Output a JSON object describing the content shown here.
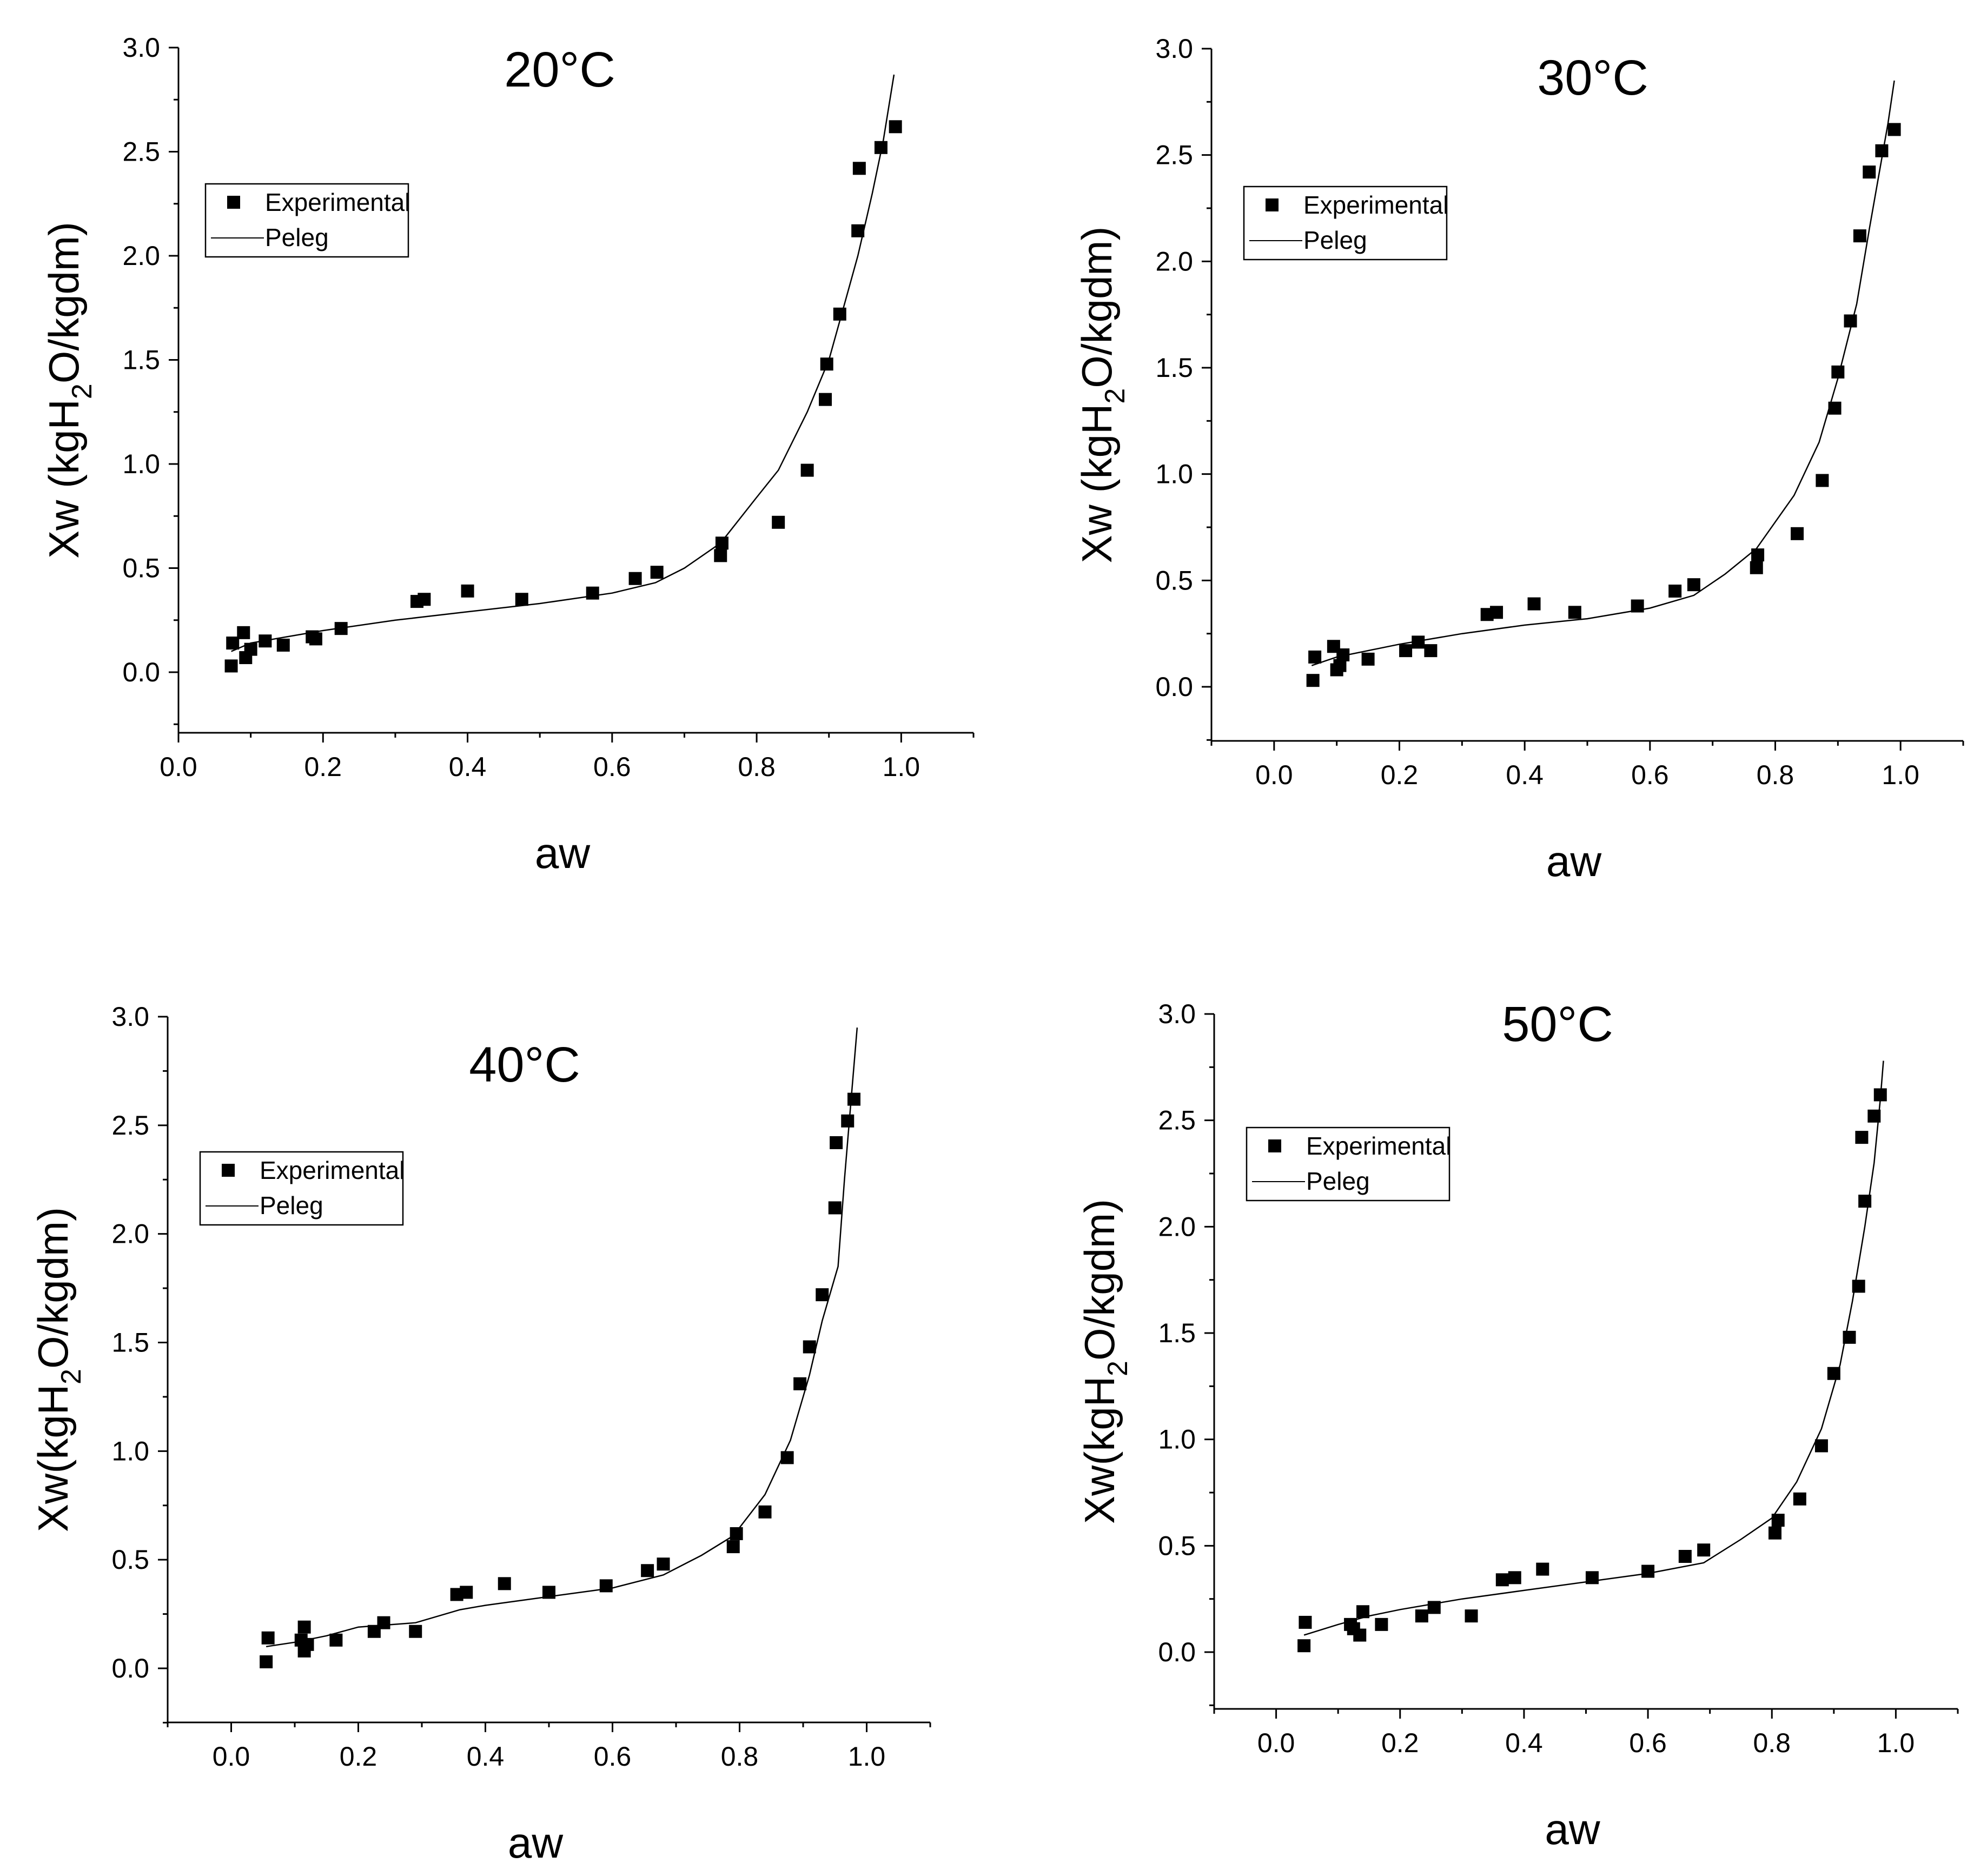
{
  "chart_data": [
    {
      "type": "scatter",
      "title": "20°C",
      "xlabel": "aw",
      "ylabel_prefix": "Xw  (kgH",
      "ylabel_sub": "2",
      "ylabel_suffix": "O/kgdm)",
      "xlim": [
        -0.0,
        1.1
      ],
      "ylim": [
        -0.25,
        3.0
      ],
      "xticks": [
        0.0,
        0.2,
        0.4,
        0.6,
        0.8,
        1.0
      ],
      "xtick_labels": [
        "0.0",
        "0.2",
        "0.4",
        "0.6",
        "0.8",
        "1.0"
      ],
      "yticks": [
        0.0,
        0.5,
        1.0,
        1.5,
        2.0,
        2.5,
        3.0
      ],
      "ytick_labels": [
        "0.0",
        "0.5",
        "1.0",
        "1.5",
        "2.0",
        "2.5",
        "3.0"
      ],
      "legend": {
        "position": "upper-left",
        "entries": [
          "Experimental",
          "Peleg"
        ]
      },
      "series": [
        {
          "name": "Experimental",
          "kind": "markers",
          "x": [
            0.073,
            0.075,
            0.09,
            0.093,
            0.1,
            0.12,
            0.145,
            0.185,
            0.19,
            0.225,
            0.33,
            0.34,
            0.4,
            0.475,
            0.573,
            0.632,
            0.662,
            0.75,
            0.752,
            0.83,
            0.87,
            0.895,
            0.897,
            0.915,
            0.94,
            0.942,
            0.972,
            0.992
          ],
          "y": [
            0.03,
            0.14,
            0.19,
            0.07,
            0.11,
            0.15,
            0.13,
            0.17,
            0.16,
            0.21,
            0.34,
            0.35,
            0.39,
            0.35,
            0.38,
            0.45,
            0.48,
            0.56,
            0.62,
            0.72,
            0.97,
            1.31,
            1.48,
            1.72,
            2.12,
            2.42,
            2.52,
            2.62
          ]
        },
        {
          "name": "Peleg",
          "kind": "line",
          "x": [
            0.073,
            0.1,
            0.15,
            0.2,
            0.3,
            0.4,
            0.5,
            0.6,
            0.66,
            0.7,
            0.75,
            0.8,
            0.83,
            0.87,
            0.9,
            0.92,
            0.94,
            0.96,
            0.975,
            0.99
          ],
          "y": [
            0.1,
            0.14,
            0.17,
            0.2,
            0.25,
            0.29,
            0.33,
            0.38,
            0.43,
            0.5,
            0.62,
            0.84,
            0.97,
            1.25,
            1.5,
            1.75,
            2.0,
            2.3,
            2.55,
            2.87
          ]
        }
      ]
    },
    {
      "type": "scatter",
      "title": "30°C",
      "xlabel": "aw",
      "ylabel_prefix": "Xw  (kgH",
      "ylabel_sub": "2",
      "ylabel_suffix": "O/kgdm)",
      "xlim": [
        -0.1,
        1.1
      ],
      "ylim": [
        -0.25,
        3.0
      ],
      "xticks": [
        0.0,
        0.2,
        0.4,
        0.6,
        0.8,
        1.0
      ],
      "xtick_labels": [
        "0.0",
        "0.2",
        "0.4",
        "0.6",
        "0.8",
        "1.0"
      ],
      "yticks": [
        0.0,
        0.5,
        1.0,
        1.5,
        2.0,
        2.5,
        3.0
      ],
      "ytick_labels": [
        "0.0",
        "0.5",
        "1.0",
        "1.5",
        "2.0",
        "2.5",
        "3.0"
      ],
      "legend": {
        "position": "upper-left",
        "entries": [
          "Experimental",
          "Peleg"
        ]
      },
      "series": [
        {
          "name": "Experimental",
          "kind": "markers",
          "x": [
            0.062,
            0.065,
            0.095,
            0.1,
            0.105,
            0.11,
            0.15,
            0.21,
            0.23,
            0.25,
            0.34,
            0.355,
            0.415,
            0.48,
            0.58,
            0.64,
            0.67,
            0.77,
            0.772,
            0.835,
            0.875,
            0.895,
            0.9,
            0.92,
            0.935,
            0.95,
            0.97,
            0.99
          ],
          "y": [
            0.03,
            0.14,
            0.19,
            0.08,
            0.1,
            0.15,
            0.13,
            0.17,
            0.21,
            0.17,
            0.34,
            0.35,
            0.39,
            0.35,
            0.38,
            0.45,
            0.48,
            0.56,
            0.62,
            0.72,
            0.97,
            1.31,
            1.48,
            1.72,
            2.12,
            2.42,
            2.52,
            2.62
          ]
        },
        {
          "name": "Peleg",
          "kind": "line",
          "x": [
            0.06,
            0.1,
            0.15,
            0.2,
            0.3,
            0.4,
            0.5,
            0.6,
            0.67,
            0.72,
            0.77,
            0.83,
            0.87,
            0.9,
            0.93,
            0.95,
            0.965,
            0.98,
            0.99
          ],
          "y": [
            0.1,
            0.14,
            0.17,
            0.2,
            0.25,
            0.29,
            0.32,
            0.37,
            0.43,
            0.53,
            0.65,
            0.9,
            1.15,
            1.45,
            1.8,
            2.15,
            2.4,
            2.65,
            2.85
          ]
        }
      ]
    },
    {
      "type": "scatter",
      "title": "40°C",
      "xlabel": "aw",
      "ylabel_prefix": "Xw(kgH",
      "ylabel_sub": "2",
      "ylabel_suffix": "O/kgdm)",
      "xlim": [
        -0.1,
        1.1
      ],
      "ylim": [
        -0.25,
        3.0
      ],
      "xticks": [
        0.0,
        0.2,
        0.4,
        0.6,
        0.8,
        1.0
      ],
      "xtick_labels": [
        "0.0",
        "0.2",
        "0.4",
        "0.6",
        "0.8",
        "1.0"
      ],
      "yticks": [
        0.0,
        0.5,
        1.0,
        1.5,
        2.0,
        2.5,
        3.0
      ],
      "ytick_labels": [
        "0.0",
        "0.5",
        "1.0",
        "1.5",
        "2.0",
        "2.5",
        "3.0"
      ],
      "legend": {
        "position": "upper-left",
        "entries": [
          "Experimental",
          "Peleg"
        ]
      },
      "series": [
        {
          "name": "Experimental",
          "kind": "markers",
          "x": [
            0.055,
            0.058,
            0.11,
            0.115,
            0.115,
            0.12,
            0.165,
            0.225,
            0.24,
            0.29,
            0.355,
            0.37,
            0.43,
            0.5,
            0.59,
            0.655,
            0.68,
            0.79,
            0.795,
            0.84,
            0.875,
            0.895,
            0.91,
            0.93,
            0.95,
            0.952,
            0.97,
            0.98
          ],
          "y": [
            0.03,
            0.14,
            0.13,
            0.08,
            0.19,
            0.11,
            0.13,
            0.17,
            0.21,
            0.17,
            0.34,
            0.35,
            0.39,
            0.35,
            0.38,
            0.45,
            0.48,
            0.56,
            0.62,
            0.72,
            0.97,
            1.31,
            1.48,
            1.72,
            2.12,
            2.42,
            2.52,
            2.62
          ]
        },
        {
          "name": "Peleg",
          "kind": "line",
          "x": [
            0.055,
            0.1,
            0.15,
            0.2,
            0.29,
            0.36,
            0.4,
            0.5,
            0.6,
            0.68,
            0.74,
            0.79,
            0.84,
            0.88,
            0.91,
            0.93,
            0.95,
            0.955,
            0.965,
            0.975,
            0.985
          ],
          "y": [
            0.1,
            0.12,
            0.15,
            0.19,
            0.21,
            0.27,
            0.29,
            0.33,
            0.37,
            0.43,
            0.52,
            0.61,
            0.8,
            1.05,
            1.35,
            1.6,
            1.8,
            1.85,
            2.25,
            2.6,
            2.95
          ]
        }
      ]
    },
    {
      "type": "scatter",
      "title": "50°C",
      "xlabel": "aw",
      "ylabel_prefix": "Xw(kgH",
      "ylabel_sub": "2",
      "ylabel_suffix": "O/kgdm)",
      "xlim": [
        -0.1,
        1.1
      ],
      "ylim": [
        -0.25,
        3.0
      ],
      "xticks": [
        0.0,
        0.2,
        0.4,
        0.6,
        0.8,
        1.0
      ],
      "xtick_labels": [
        "0.0",
        "0.2",
        "0.4",
        "0.6",
        "0.8",
        "1.0"
      ],
      "yticks": [
        0.0,
        0.5,
        1.0,
        1.5,
        2.0,
        2.5,
        3.0
      ],
      "ytick_labels": [
        "0.0",
        "0.5",
        "1.0",
        "1.5",
        "2.0",
        "2.5",
        "3.0"
      ],
      "legend": {
        "position": "upper-left",
        "entries": [
          "Experimental",
          "Peleg"
        ]
      },
      "series": [
        {
          "name": "Experimental",
          "kind": "markers",
          "x": [
            0.045,
            0.047,
            0.12,
            0.125,
            0.135,
            0.14,
            0.17,
            0.235,
            0.255,
            0.315,
            0.365,
            0.385,
            0.43,
            0.51,
            0.6,
            0.66,
            0.69,
            0.805,
            0.81,
            0.845,
            0.88,
            0.9,
            0.925,
            0.94,
            0.945,
            0.95,
            0.965,
            0.975
          ],
          "y": [
            0.03,
            0.14,
            0.13,
            0.11,
            0.08,
            0.19,
            0.13,
            0.17,
            0.21,
            0.17,
            0.34,
            0.35,
            0.39,
            0.35,
            0.38,
            0.45,
            0.48,
            0.56,
            0.62,
            0.72,
            0.97,
            1.31,
            1.48,
            1.72,
            2.42,
            2.12,
            2.52,
            2.62
          ]
        },
        {
          "name": "Peleg",
          "kind": "line",
          "x": [
            0.045,
            0.1,
            0.15,
            0.2,
            0.3,
            0.4,
            0.5,
            0.6,
            0.69,
            0.75,
            0.8,
            0.84,
            0.88,
            0.91,
            0.93,
            0.95,
            0.965,
            0.975,
            0.98
          ],
          "y": [
            0.08,
            0.13,
            0.17,
            0.2,
            0.25,
            0.29,
            0.33,
            0.37,
            0.42,
            0.53,
            0.63,
            0.8,
            1.05,
            1.35,
            1.65,
            2.0,
            2.3,
            2.6,
            2.78
          ]
        }
      ]
    }
  ]
}
